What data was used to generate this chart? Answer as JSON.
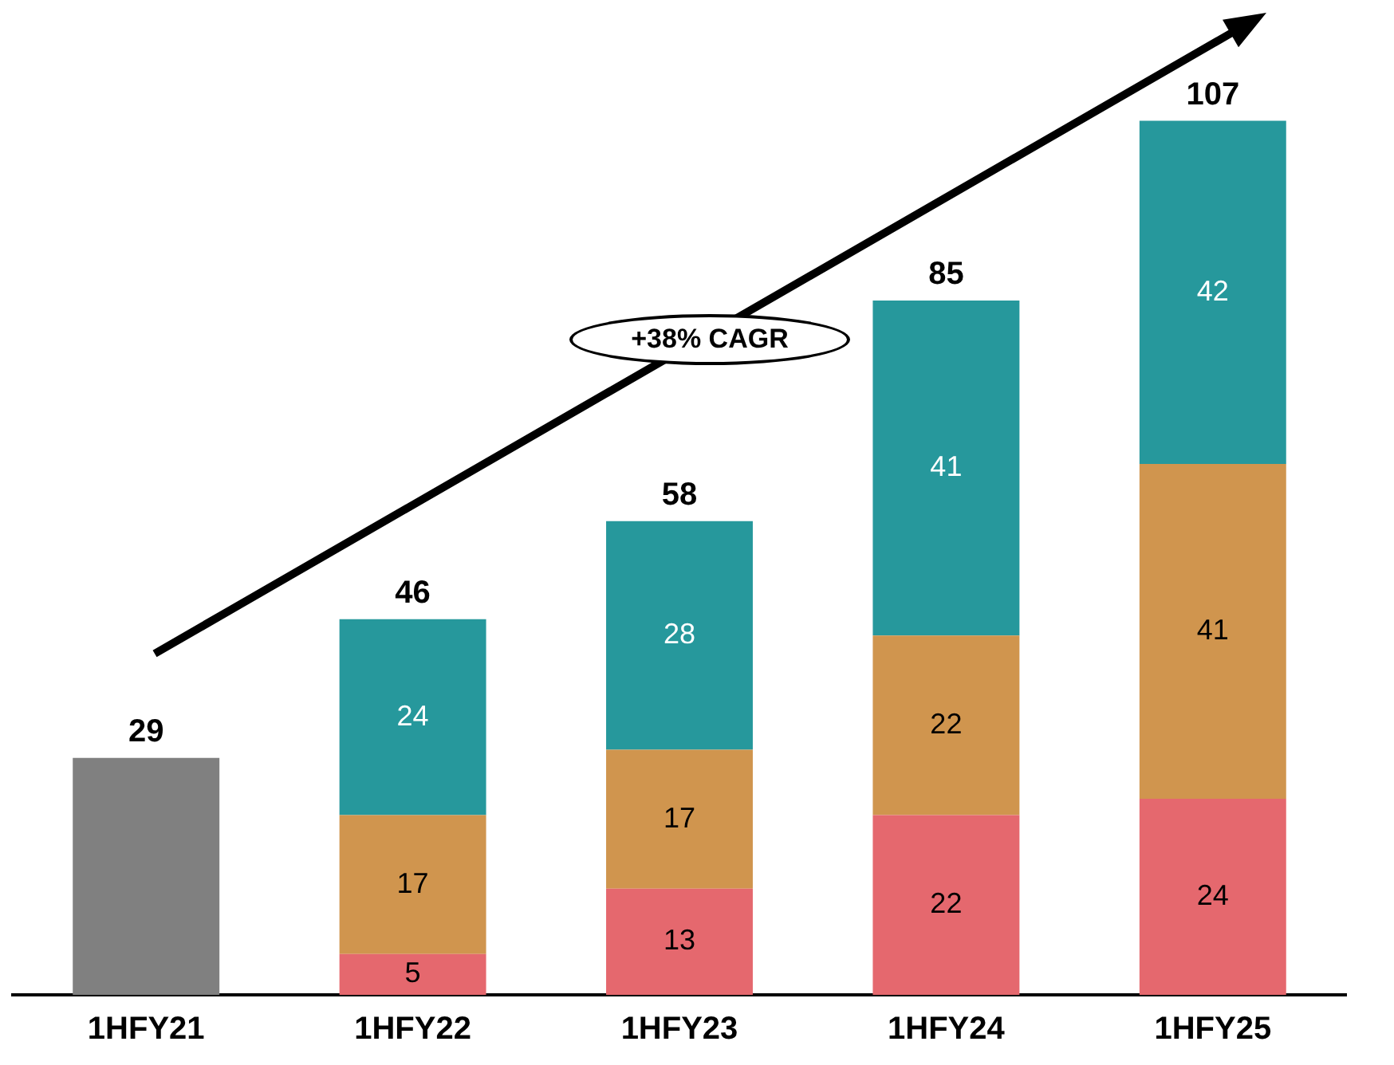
{
  "chart_data": {
    "type": "bar",
    "stacked": true,
    "categories": [
      "1HFY21",
      "1HFY22",
      "1HFY23",
      "1HFY24",
      "1HFY25"
    ],
    "series": [
      {
        "color": "#808080",
        "values": [
          29,
          null,
          null,
          null,
          null
        ],
        "value_labels": [
          null,
          null,
          null,
          null,
          null
        ]
      },
      {
        "color": "#e5686e",
        "values": [
          null,
          5,
          13,
          22,
          24
        ],
        "value_labels": [
          null,
          "5",
          "13",
          "22",
          "24"
        ]
      },
      {
        "color": "#d0954e",
        "values": [
          null,
          17,
          17,
          22,
          41
        ],
        "value_labels": [
          null,
          "17",
          "17",
          "22",
          "41"
        ]
      },
      {
        "color": "#26989c",
        "values": [
          null,
          24,
          28,
          41,
          42
        ],
        "value_labels": [
          null,
          "24",
          "28",
          "41",
          "42"
        ]
      }
    ],
    "totals": [
      "29",
      "46",
      "58",
      "85",
      "107"
    ],
    "annotations": [
      "+38% CAGR"
    ],
    "grid": false,
    "legend": false,
    "tick_labels": "x"
  }
}
